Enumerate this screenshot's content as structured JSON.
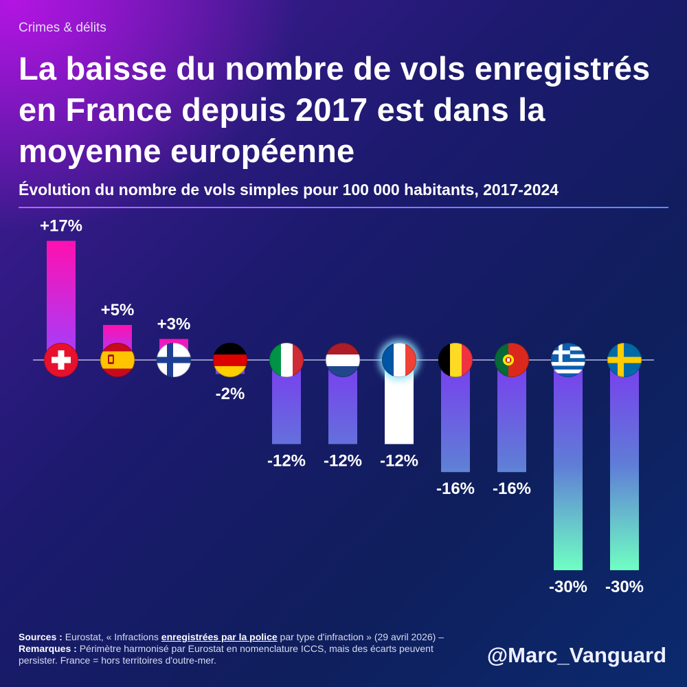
{
  "header": {
    "category": "Crimes & délits",
    "title": "La baisse du nombre de vols enregistrés en France depuis 2017 est dans la moyenne européenne"
  },
  "chart_data": {
    "type": "bar",
    "title": "La baisse du nombre de vols enregistrés en France depuis 2017 est dans la moyenne européenne",
    "subtitle": "Évolution du nombre de vols simples pour 100 000 habitants, 2017-2024",
    "categories": [
      "Suisse",
      "Espagne",
      "Finlande",
      "Allemagne",
      "Italie",
      "Pays-Bas",
      "France",
      "Belgique",
      "Portugal",
      "Grèce",
      "Suède"
    ],
    "flags": [
      "flag-switzerland-icon",
      "flag-spain-icon",
      "flag-finland-icon",
      "flag-germany-icon",
      "flag-italy-icon",
      "flag-netherlands-icon",
      "flag-france-icon",
      "flag-belgium-icon",
      "flag-portugal-icon",
      "flag-greece-icon",
      "flag-sweden-icon"
    ],
    "values": [
      17,
      5,
      3,
      -2,
      -12,
      -12,
      -12,
      -16,
      -16,
      -30,
      -30
    ],
    "labels": [
      "+17%",
      "+5%",
      "+3%",
      "-2%",
      "-12%",
      "-12%",
      "-12%",
      "-16%",
      "-16%",
      "-30%",
      "-30%"
    ],
    "highlight": "France",
    "ylim": [
      -30,
      17
    ],
    "xlabel": "",
    "ylabel": "",
    "grid": false,
    "colors": {
      "positive_bottom": "#a040ff",
      "positive_top": "#ff10b0",
      "negative_top": "#7a3cf0",
      "negative_bottom": "#6fffc2",
      "highlight": "#ffffff",
      "baseline": "#b9bde0"
    }
  },
  "footer": {
    "sources_label": "Sources :",
    "sources_text_1": " Eurostat, « Infractions ",
    "sources_link": "enregistrées par la police",
    "sources_text_2": " par type d'infraction » (29 avril 2026) – ",
    "remarks_label": "Remarques :",
    "remarks_text": " Périmètre harmonisé par Eurostat en nomenclature ICCS, mais des écarts peuvent persister. France = hors territoires d'outre-mer.",
    "handle": "@Marc_Vanguard"
  }
}
